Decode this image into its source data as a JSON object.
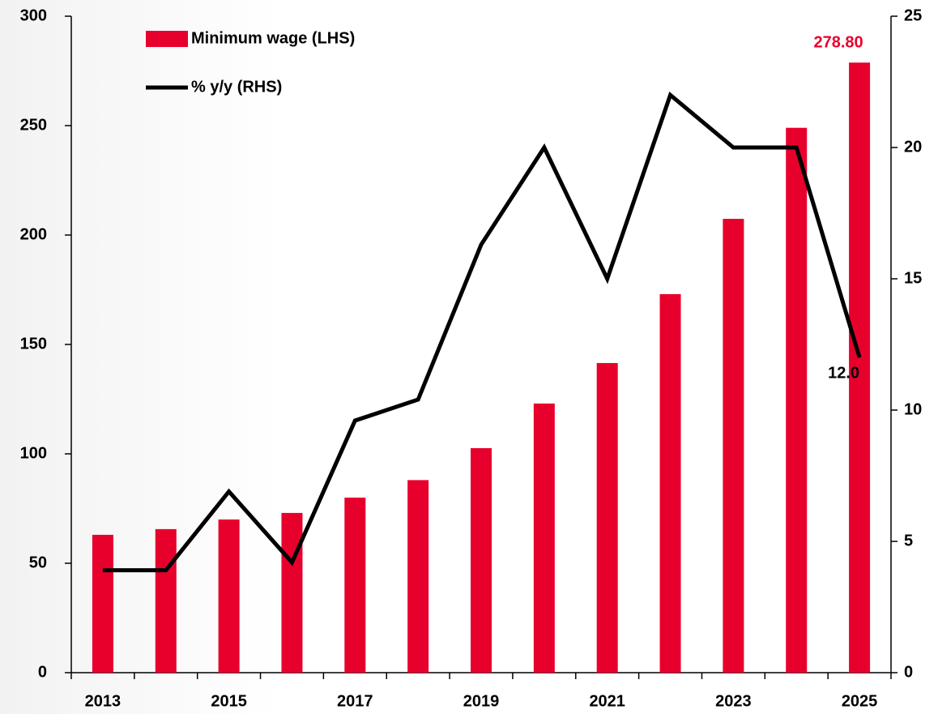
{
  "chart_data": {
    "type": "bar+line",
    "categories": [
      "2013",
      null,
      "2015",
      null,
      "2017",
      null,
      "2019",
      null,
      "2021",
      null,
      "2023",
      null,
      "2025"
    ],
    "series": [
      {
        "name": "Minimum wage (LHS)",
        "type": "bar",
        "color": "#e8002d",
        "axis": "y",
        "values": [
          63,
          65.6,
          70,
          73,
          80,
          88,
          102.6,
          123,
          141.5,
          173,
          207.4,
          249,
          278.8
        ],
        "value_labels": [
          null,
          null,
          null,
          null,
          null,
          null,
          null,
          null,
          null,
          null,
          null,
          null,
          "278.80"
        ]
      },
      {
        "name": "% y/y (RHS)",
        "type": "line",
        "color": "#000000",
        "axis": "y2",
        "values": [
          3.9,
          3.9,
          6.9,
          4.2,
          9.6,
          10.4,
          16.3,
          20.0,
          15.0,
          22.0,
          20.0,
          20.0,
          12.0
        ],
        "value_labels": [
          null,
          null,
          null,
          null,
          null,
          null,
          null,
          null,
          null,
          null,
          null,
          null,
          "12.0"
        ]
      }
    ],
    "ylim": [
      0,
      300
    ],
    "yticks": [
      0,
      50,
      100,
      150,
      200,
      250,
      300
    ],
    "y2lim": [
      0,
      25
    ],
    "y2ticks": [
      0,
      5,
      10,
      15,
      20,
      25
    ]
  }
}
